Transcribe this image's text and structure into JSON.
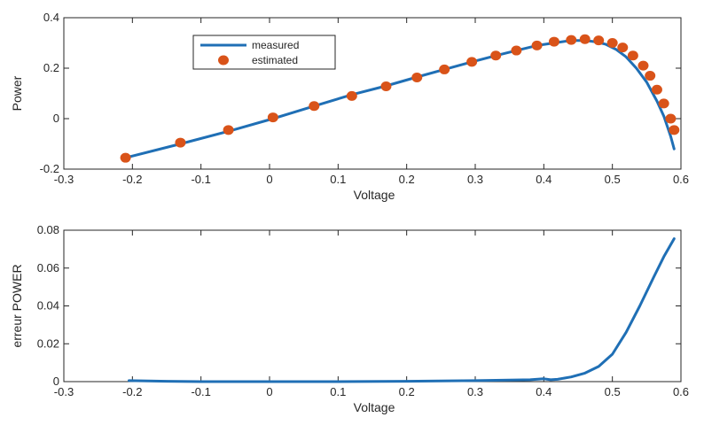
{
  "chart_data": [
    {
      "type": "line",
      "xlabel": "Voltage",
      "ylabel": "Power",
      "xlim": [
        -0.3,
        0.6
      ],
      "ylim": [
        -0.2,
        0.4
      ],
      "x_ticks": [
        "-0.3",
        "-0.2",
        "-0.1",
        "0",
        "0.1",
        "0.2",
        "0.3",
        "0.4",
        "0.5",
        "0.6"
      ],
      "y_ticks": [
        "-0.2",
        "0",
        "0.2",
        "0.4"
      ],
      "grid": false,
      "legend_position": "top-left",
      "series": [
        {
          "name": "measured",
          "style": "line",
          "color": "#1f6fb5",
          "x": [
            -0.21,
            -0.13,
            -0.06,
            0.005,
            0.065,
            0.12,
            0.17,
            0.215,
            0.255,
            0.295,
            0.33,
            0.36,
            0.39,
            0.415,
            0.44,
            0.46,
            0.475,
            0.49,
            0.505,
            0.52,
            0.535,
            0.55,
            0.565,
            0.575,
            0.585,
            0.59
          ],
          "y": [
            -0.155,
            -0.1,
            -0.05,
            0.0,
            0.05,
            0.095,
            0.13,
            0.165,
            0.195,
            0.225,
            0.25,
            0.27,
            0.29,
            0.3,
            0.31,
            0.31,
            0.305,
            0.295,
            0.275,
            0.245,
            0.2,
            0.145,
            0.07,
            0.01,
            -0.07,
            -0.12
          ]
        },
        {
          "name": "estimated",
          "style": "markers",
          "color": "#d95319",
          "x": [
            -0.21,
            -0.13,
            -0.06,
            0.005,
            0.065,
            0.12,
            0.17,
            0.215,
            0.255,
            0.295,
            0.33,
            0.36,
            0.39,
            0.415,
            0.44,
            0.46,
            0.48,
            0.5,
            0.515,
            0.53,
            0.545,
            0.555,
            0.565,
            0.575,
            0.585,
            0.59
          ],
          "y": [
            -0.155,
            -0.095,
            -0.045,
            0.005,
            0.05,
            0.09,
            0.128,
            0.163,
            0.195,
            0.225,
            0.25,
            0.27,
            0.29,
            0.305,
            0.312,
            0.315,
            0.31,
            0.3,
            0.282,
            0.25,
            0.21,
            0.17,
            0.115,
            0.06,
            0.0,
            -0.045
          ]
        }
      ]
    },
    {
      "type": "line",
      "xlabel": "Voltage",
      "ylabel": "erreur POWER",
      "xlim": [
        -0.3,
        0.6
      ],
      "ylim": [
        0,
        0.08
      ],
      "x_ticks": [
        "-0.3",
        "-0.2",
        "-0.1",
        "0",
        "0.1",
        "0.2",
        "0.3",
        "0.4",
        "0.5",
        "0.6"
      ],
      "y_ticks": [
        "0",
        "0.02",
        "0.04",
        "0.06",
        "0.08"
      ],
      "grid": false,
      "series": [
        {
          "style": "line",
          "color": "#1f6fb5",
          "x": [
            -0.205,
            -0.15,
            -0.1,
            -0.05,
            0.0,
            0.1,
            0.2,
            0.3,
            0.35,
            0.38,
            0.4,
            0.41,
            0.42,
            0.44,
            0.46,
            0.48,
            0.5,
            0.52,
            0.54,
            0.56,
            0.575,
            0.59
          ],
          "y": [
            0.0005,
            0.0002,
            0.0,
            0.0,
            0.0,
            0.0,
            0.0002,
            0.0005,
            0.0008,
            0.001,
            0.0015,
            0.001,
            0.0012,
            0.0025,
            0.0045,
            0.008,
            0.0145,
            0.026,
            0.04,
            0.055,
            0.066,
            0.0755
          ]
        }
      ]
    }
  ]
}
